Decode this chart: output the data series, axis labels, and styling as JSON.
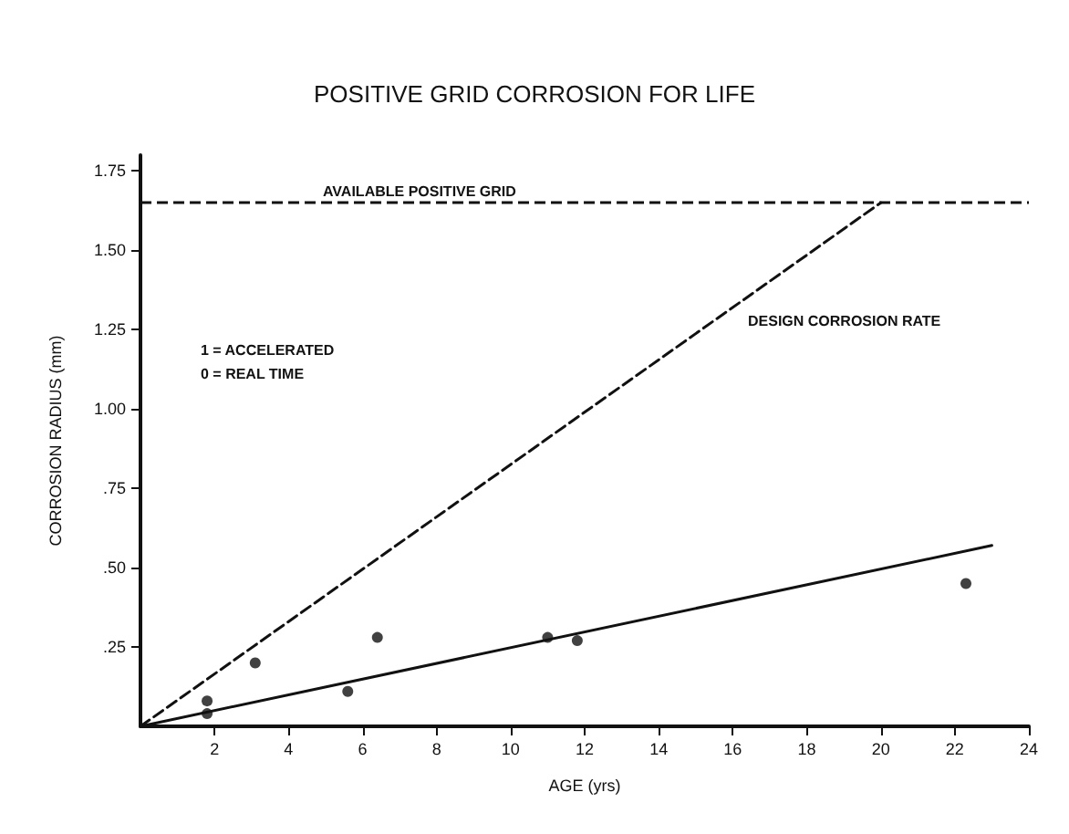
{
  "chart_data": {
    "type": "scatter",
    "title": "POSITIVE GRID CORROSION FOR LIFE",
    "xlabel": "AGE (yrs)",
    "ylabel": "CORROSION RADIUS (mm)",
    "xlim": [
      0,
      24
    ],
    "xticks": [
      2,
      4,
      6,
      8,
      10,
      12,
      14,
      16,
      18,
      20,
      22,
      24
    ],
    "ylim": [
      0,
      1.8
    ],
    "yticks": [
      {
        "value": 0.25,
        "label": ".25"
      },
      {
        "value": 0.5,
        "label": ".50"
      },
      {
        "value": 0.75,
        "label": ".75"
      },
      {
        "value": 1,
        "label": "1.00"
      },
      {
        "value": 1.25,
        "label": "1.25"
      },
      {
        "value": 1.5,
        "label": "1.50"
      },
      {
        "value": 1.75,
        "label": "1.75"
      }
    ],
    "grid": false,
    "marker": "circle",
    "series": [
      {
        "color": "#111111",
        "x": [
          1.8,
          3.1,
          6.4,
          11.0,
          22.3
        ],
        "values": [
          0.08,
          0.2,
          0.28,
          0.28,
          0.45
        ]
      },
      {
        "color": "#111111",
        "x": [
          1.8,
          5.6,
          11.8
        ],
        "values": [
          0.04,
          0.11,
          0.27
        ]
      },
      {
        "type": "line",
        "color": "#111111",
        "line_style": "solid",
        "marker": "none",
        "x": [
          0,
          23
        ],
        "values": [
          0,
          0.57
        ]
      },
      {
        "type": "line",
        "color": "#111111",
        "line_style": "dashed",
        "marker": "none",
        "x": [
          0,
          20
        ],
        "values": [
          0,
          1.65
        ]
      }
    ],
    "ref_lines": [
      {
        "axis": "y",
        "value": 1.65,
        "label": "AVAILABLE POSITIVE GRID",
        "color": "#111111",
        "line_style": "dashed"
      }
    ],
    "annotations": [
      "1 = ACCELERATED",
      "0 = REAL TIME",
      "DESIGN CORROSION RATE"
    ]
  }
}
